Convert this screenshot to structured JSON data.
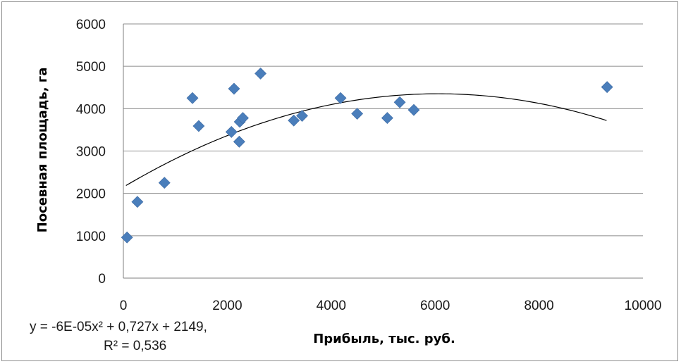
{
  "chart_data": {
    "type": "scatter",
    "xlabel": "Прибыль, тыс. руб.",
    "ylabel": "Посевная площадь, га",
    "xlim": [
      0,
      10000
    ],
    "ylim": [
      0,
      6000
    ],
    "x_ticks": [
      "0",
      "2000",
      "4000",
      "6000",
      "8000",
      "10000"
    ],
    "y_ticks": [
      "0",
      "1000",
      "2000",
      "3000",
      "4000",
      "5000",
      "6000"
    ],
    "grid": "horizontal",
    "marker": "diamond",
    "marker_color": "#4a7ebb",
    "series": [
      {
        "points": [
          {
            "x": 70,
            "y": 960
          },
          {
            "x": 270,
            "y": 1800
          },
          {
            "x": 790,
            "y": 2250
          },
          {
            "x": 1330,
            "y": 4250
          },
          {
            "x": 1450,
            "y": 3590
          },
          {
            "x": 2080,
            "y": 3450
          },
          {
            "x": 2130,
            "y": 4470
          },
          {
            "x": 2230,
            "y": 3220
          },
          {
            "x": 2240,
            "y": 3690
          },
          {
            "x": 2300,
            "y": 3780
          },
          {
            "x": 2640,
            "y": 4830
          },
          {
            "x": 3280,
            "y": 3720
          },
          {
            "x": 3440,
            "y": 3830
          },
          {
            "x": 4180,
            "y": 4250
          },
          {
            "x": 4500,
            "y": 3880
          },
          {
            "x": 5080,
            "y": 3780
          },
          {
            "x": 5320,
            "y": 4150
          },
          {
            "x": 5590,
            "y": 3970
          },
          {
            "x": 9310,
            "y": 4510
          }
        ]
      }
    ],
    "trendline": {
      "type": "polynomial",
      "coefficients": [
        -6e-05,
        0.727,
        2149
      ],
      "x_range": [
        50,
        9300
      ],
      "color": "#000000",
      "equation_line1": "y = -6E-05x² + 0,727x + 2149,",
      "equation_line2": "R² = 0,536"
    }
  }
}
